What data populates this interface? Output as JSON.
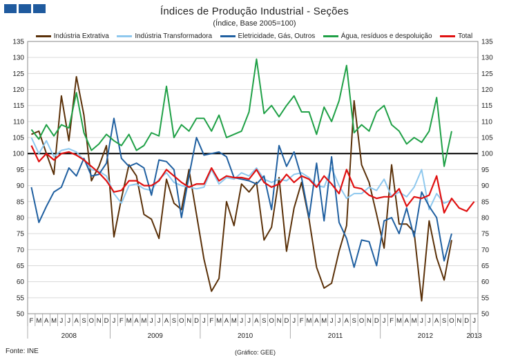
{
  "header": {
    "title": "Índices de Produção Industrial - Seções",
    "subtitle": "(Índice, Base 2005=100)"
  },
  "footer": {
    "source": "Fonte: INE",
    "credit": "(Gráfico: GEE)"
  },
  "chart_data": {
    "type": "line",
    "title": "Índices de Produção Industrial - Seções",
    "subtitle": "(Índice, Base 2005=100)",
    "ylim": [
      50,
      135
    ],
    "yticks": [
      50,
      55,
      60,
      65,
      70,
      75,
      80,
      85,
      90,
      95,
      100,
      105,
      110,
      115,
      120,
      125,
      130,
      135
    ],
    "ytick_labels": [
      "50",
      "55",
      "60",
      "65",
      "70",
      "75",
      "80",
      "85",
      "90",
      "95",
      "100",
      "105",
      "110",
      "115",
      "120",
      "125",
      "130",
      "135"
    ],
    "grid": true,
    "legend_position": "top",
    "reference_line": 100,
    "x_month_labels": [
      "F",
      "M",
      "A",
      "M",
      "J",
      "J",
      "A",
      "S",
      "O",
      "N",
      "D",
      "J",
      "F",
      "M",
      "A",
      "M",
      "J",
      "J",
      "A",
      "S",
      "O",
      "N",
      "D",
      "J",
      "F",
      "M",
      "A",
      "M",
      "J",
      "J",
      "A",
      "S",
      "O",
      "N",
      "D",
      "J",
      "F",
      "M",
      "A",
      "M",
      "J",
      "J",
      "A",
      "S",
      "O",
      "N",
      "D",
      "J",
      "F",
      "M",
      "A",
      "M",
      "J",
      "J",
      "A",
      "S",
      "O",
      "N",
      "D",
      "J"
    ],
    "year_labels": [
      {
        "label": "2008",
        "start": 0,
        "end": 10
      },
      {
        "label": "2009",
        "start": 11,
        "end": 22
      },
      {
        "label": "2010",
        "start": 23,
        "end": 34
      },
      {
        "label": "2011",
        "start": 35,
        "end": 46
      },
      {
        "label": "2012",
        "start": 47,
        "end": 58
      },
      {
        "label": "2013",
        "start": 59,
        "end": 59
      }
    ],
    "series": [
      {
        "name": "Indústria Extrativa",
        "color": "#5a3008",
        "values": [
          106,
          107,
          100,
          93.5,
          118,
          104,
          124,
          112,
          91.5,
          96,
          102.5,
          74,
          86,
          96.5,
          93,
          81,
          79.5,
          73.5,
          92,
          84.5,
          82.5,
          95,
          81,
          67,
          57,
          61,
          85,
          77.5,
          90.5,
          88,
          91,
          73,
          77,
          92.5,
          69.5,
          83,
          91,
          79.5,
          64.5,
          58,
          59.5,
          69.5,
          77.5,
          116.5,
          96.5,
          91,
          81,
          70.5,
          96.5,
          78,
          78,
          75.5,
          54,
          79,
          67.5,
          60.5,
          73,
          null,
          null,
          null
        ]
      },
      {
        "name": "Indústria Transformadora",
        "color": "#8ec8ee",
        "values": [
          105,
          100,
          104,
          99,
          101,
          101.5,
          100.5,
          98,
          95,
          94.5,
          93,
          87.5,
          84.5,
          90,
          90.5,
          89,
          88.5,
          92,
          94,
          91,
          90,
          89.5,
          89,
          89.5,
          95,
          90.5,
          92.5,
          92,
          94,
          93,
          95.5,
          92,
          91,
          92,
          91.5,
          93.5,
          94,
          92.5,
          90,
          89.5,
          95.5,
          90,
          86,
          87.5,
          87.5,
          89.5,
          88.5,
          92,
          86.5,
          88,
          86.5,
          89.5,
          95,
          82.5,
          87.5,
          84.5,
          85.5,
          null,
          null,
          null
        ]
      },
      {
        "name": "Eletricidade, Gás, Outros",
        "color": "#1f5fa0",
        "values": [
          89.5,
          78.5,
          83.5,
          88,
          89.5,
          95.5,
          93,
          98.5,
          93,
          93.5,
          97,
          111,
          98.5,
          96,
          97,
          95.5,
          87,
          98,
          97.5,
          95,
          80,
          93,
          105,
          99.5,
          100,
          100.5,
          99,
          92.5,
          92,
          91.5,
          90.5,
          93,
          82.5,
          102.5,
          96,
          100.5,
          92.5,
          80,
          97,
          79,
          99,
          78.5,
          73.5,
          64.5,
          73,
          72.5,
          65,
          79,
          80,
          75,
          83,
          74,
          88,
          83.5,
          80,
          66.5,
          75,
          null,
          null,
          null
        ]
      },
      {
        "name": "Água, resíduos e despoluição",
        "color": "#1fa046",
        "values": [
          107.5,
          104.5,
          109,
          105.5,
          109,
          108,
          119,
          106.5,
          101,
          103,
          106,
          104,
          102.5,
          106,
          101,
          102.5,
          106.5,
          105.5,
          121,
          105,
          109,
          107,
          111,
          111,
          107,
          112,
          105,
          106,
          107,
          113,
          129.5,
          112.5,
          115,
          111.5,
          115,
          118,
          113,
          113,
          106,
          114.5,
          110,
          116.5,
          127.5,
          106.5,
          109,
          107,
          113,
          115,
          109,
          107,
          103,
          105,
          103.5,
          107,
          117.5,
          96,
          107,
          null,
          null,
          null
        ]
      },
      {
        "name": "Total",
        "color": "#e01010",
        "values": [
          102.5,
          97.5,
          100,
          98,
          100,
          100.5,
          99.5,
          98,
          96,
          94,
          91.5,
          88,
          88.5,
          91.5,
          91.5,
          90,
          90,
          91.5,
          95,
          93,
          91,
          89.5,
          90.5,
          90.5,
          95.5,
          91.5,
          93,
          92.5,
          92.5,
          92,
          95,
          91,
          89.5,
          90.5,
          93.5,
          91,
          93,
          92,
          89.5,
          93,
          90.5,
          87.5,
          95,
          89.5,
          89,
          87,
          86,
          86.5,
          86.5,
          89,
          83.5,
          86.5,
          86,
          87,
          93,
          81.5,
          86,
          83,
          82,
          85
        ]
      }
    ]
  }
}
